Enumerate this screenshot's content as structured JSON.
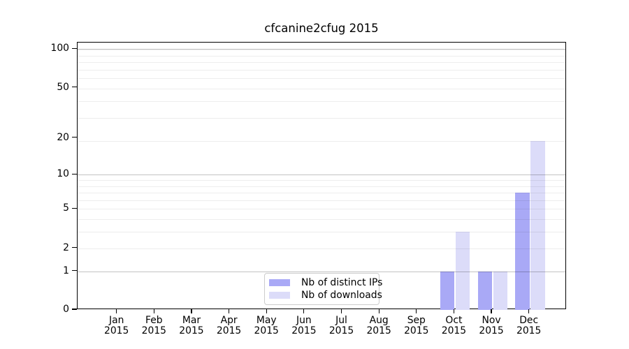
{
  "chart_data": {
    "type": "bar",
    "title": "cfcanine2cfug 2015",
    "categories": [
      "Jan",
      "Feb",
      "Mar",
      "Apr",
      "May",
      "Jun",
      "Jul",
      "Aug",
      "Sep",
      "Oct",
      "Nov",
      "Dec"
    ],
    "category_year": "2015",
    "series": [
      {
        "name": "Nb of distinct IPs",
        "color": "#a9a9f6",
        "values": [
          0,
          0,
          0,
          0,
          0,
          0,
          0,
          0,
          0,
          1,
          1,
          7
        ]
      },
      {
        "name": "Nb of downloads",
        "color": "#dcdcf9",
        "values": [
          0,
          0,
          0,
          0,
          0,
          0,
          0,
          0,
          0,
          3,
          1,
          19
        ]
      }
    ],
    "xlabel": "",
    "ylabel": "",
    "yticks": [
      0,
      1,
      2,
      5,
      10,
      20,
      50,
      100
    ],
    "ylim": [
      0,
      112
    ],
    "yscale": "log1p",
    "grid": true,
    "major_gridline_values": [
      1,
      10,
      100
    ],
    "minor_gridline_values": [
      2,
      3,
      4,
      5,
      6,
      7,
      8,
      9,
      19,
      29,
      39,
      49,
      59,
      69,
      79,
      89,
      99
    ],
    "legend_position": "lower-center"
  },
  "colors": {
    "bar_distinct_ips": "#a9a9f6",
    "bar_downloads": "#dcdcf9",
    "spine": "#000000",
    "grid_major": "rgba(0,0,0,0.24)",
    "grid_minor": "rgba(0,0,0,0.07)",
    "legend_border": "#cccccc",
    "background": "#ffffff"
  }
}
